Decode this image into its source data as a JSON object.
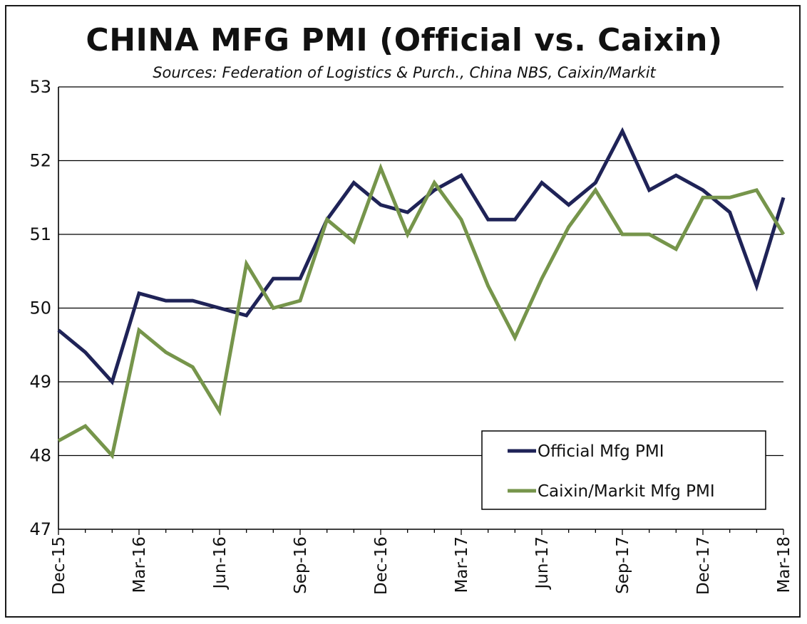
{
  "chart_data": {
    "type": "line",
    "title": "CHINA MFG PMI (Official vs. Caixin)",
    "subtitle": "Sources: Federation of Logistics & Purch., China NBS, Caixin/Markit",
    "ylim": [
      47,
      53
    ],
    "yticks": [
      47,
      48,
      49,
      50,
      51,
      52,
      53
    ],
    "grid": true,
    "legend_position": "bottom-right",
    "x": [
      "Dec-15",
      "Jan-16",
      "Feb-16",
      "Mar-16",
      "Apr-16",
      "May-16",
      "Jun-16",
      "Jul-16",
      "Aug-16",
      "Sep-16",
      "Oct-16",
      "Nov-16",
      "Dec-16",
      "Jan-17",
      "Feb-17",
      "Mar-17",
      "Apr-17",
      "May-17",
      "Jun-17",
      "Jul-17",
      "Aug-17",
      "Sep-17",
      "Oct-17",
      "Nov-17",
      "Dec-17",
      "Jan-18",
      "Feb-18",
      "Mar-18"
    ],
    "xtick_labels": [
      "Dec-15",
      "Mar-16",
      "Jun-16",
      "Sep-16",
      "Dec-16",
      "Mar-17",
      "Jun-17",
      "Sep-17",
      "Dec-17",
      "Mar-18"
    ],
    "series": [
      {
        "name": "Official Mfg PMI",
        "color": "#1f2357",
        "values": [
          49.7,
          49.4,
          49.0,
          50.2,
          50.1,
          50.1,
          50.0,
          49.9,
          50.4,
          50.4,
          51.2,
          51.7,
          51.4,
          51.3,
          51.6,
          51.8,
          51.2,
          51.2,
          51.7,
          51.4,
          51.7,
          52.4,
          51.6,
          51.8,
          51.6,
          51.3,
          50.3,
          51.5
        ]
      },
      {
        "name": "Caixin/Markit Mfg PMI",
        "color": "#76954b",
        "values": [
          48.2,
          48.4,
          48.0,
          49.7,
          49.4,
          49.2,
          48.6,
          50.6,
          50.0,
          50.1,
          51.2,
          50.9,
          51.9,
          51.0,
          51.7,
          51.2,
          50.3,
          49.6,
          50.4,
          51.1,
          51.6,
          51.0,
          51.0,
          50.8,
          51.5,
          51.5,
          51.6,
          51.0
        ]
      }
    ]
  }
}
